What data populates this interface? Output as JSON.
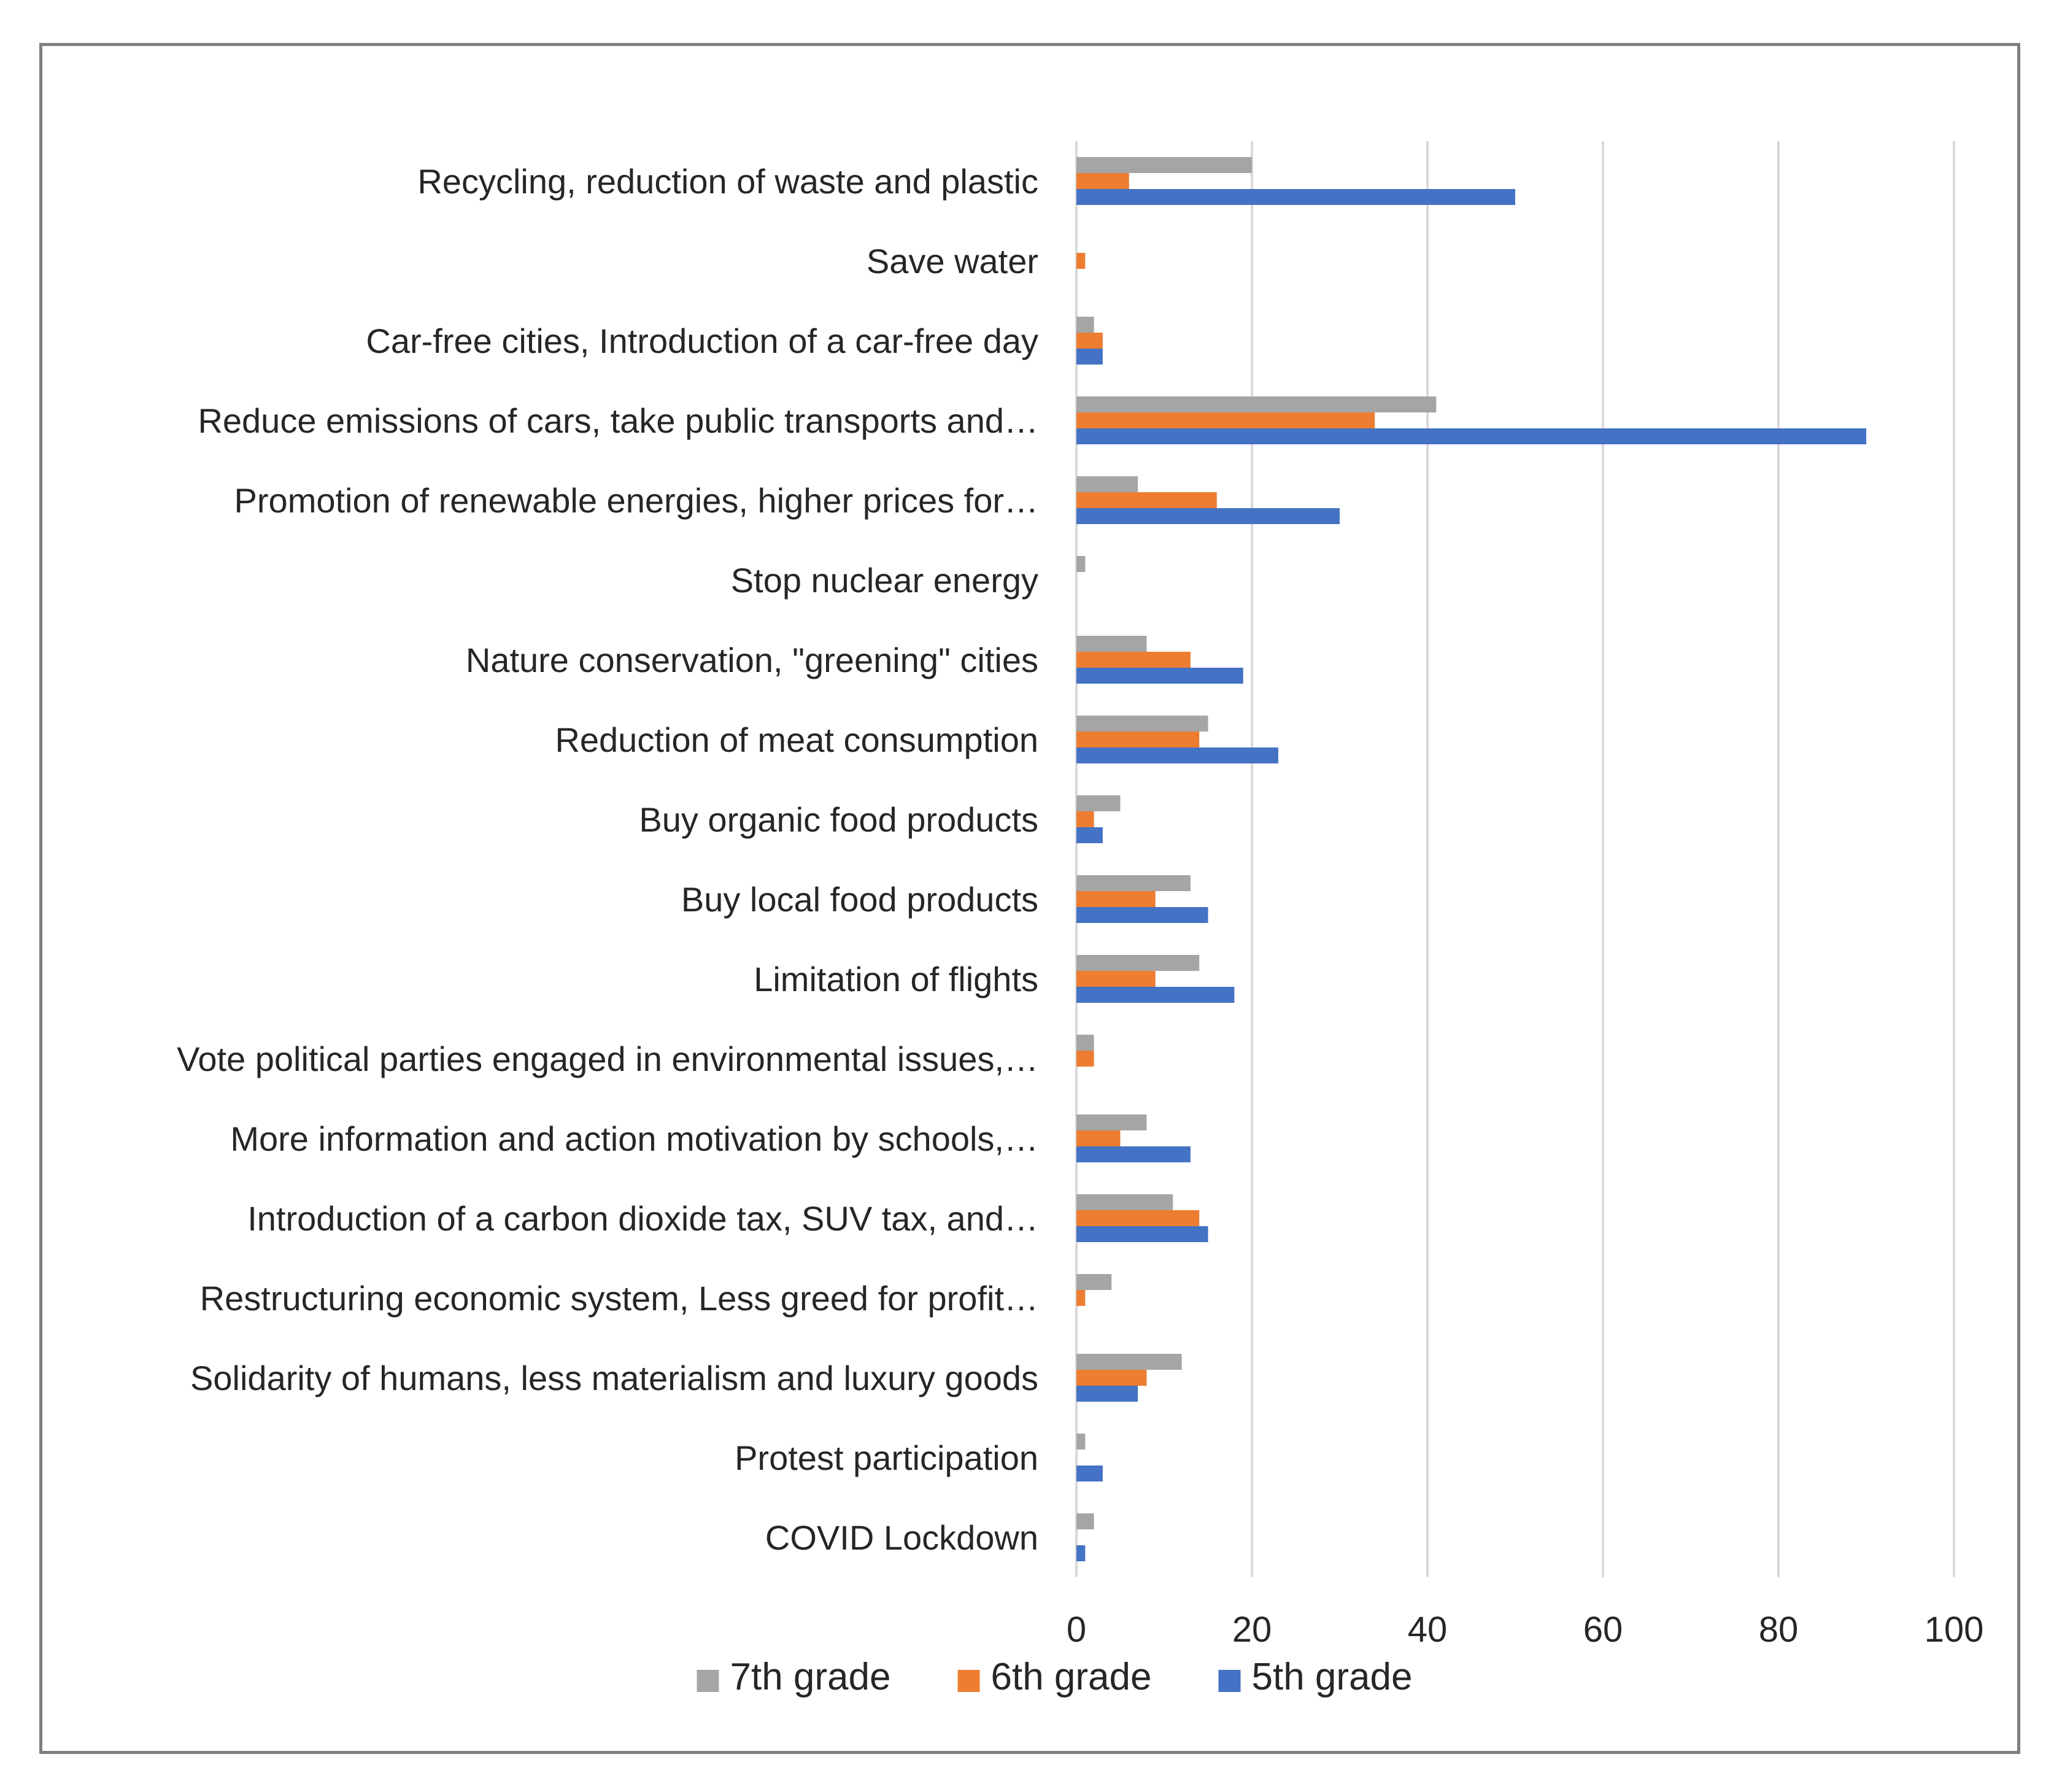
{
  "chart_data": {
    "type": "bar",
    "orientation": "horizontal",
    "title": "",
    "xlabel": "",
    "ylabel": "",
    "xlim": [
      0,
      100
    ],
    "xticks": [
      0,
      20,
      40,
      60,
      80,
      100
    ],
    "grid": true,
    "legend_position": "bottom",
    "categories": [
      "Recycling, reduction of waste and plastic",
      "Save water",
      "Car-free cities, Introduction of a car-free day",
      "Reduce emissions of cars, take public transports and…",
      "Promotion of renewable energies, higher prices for…",
      "Stop nuclear energy",
      "Nature conservation, \"greening\" cities",
      "Reduction of meat consumption",
      "Buy organic food products",
      "Buy local food products",
      "Limitation of flights",
      "Vote political parties engaged in environmental issues,…",
      "More information and action motivation by schools,…",
      "Introduction of a carbon dioxide tax, SUV tax, and…",
      "Restructuring economic system, Less greed for profit…",
      "Solidarity of humans, less materialism and luxury goods",
      "Protest participation",
      "COVID Lockdown"
    ],
    "series": [
      {
        "name": "7th grade",
        "color": "#a5a5a5",
        "values": [
          20,
          0,
          2,
          41,
          7,
          1,
          8,
          15,
          5,
          13,
          14,
          2,
          8,
          11,
          4,
          12,
          1,
          2
        ]
      },
      {
        "name": "6th grade",
        "color": "#ed7d31",
        "values": [
          6,
          1,
          3,
          34,
          16,
          0,
          13,
          14,
          2,
          9,
          9,
          2,
          5,
          14,
          1,
          8,
          0,
          0
        ]
      },
      {
        "name": "5th grade",
        "color": "#4472c4",
        "values": [
          50,
          0,
          3,
          90,
          30,
          0,
          19,
          23,
          3,
          15,
          18,
          0,
          13,
          15,
          0,
          7,
          3,
          1
        ]
      }
    ],
    "legend": [
      "7th grade",
      "6th grade",
      "5th grade"
    ]
  }
}
